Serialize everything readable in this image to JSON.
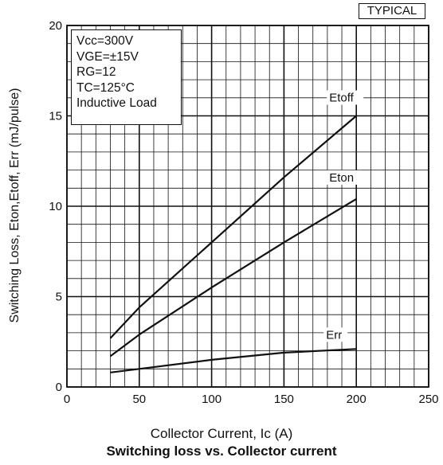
{
  "badge": "TYPICAL",
  "conditions": [
    "Vcc=300V",
    "VGE=±15V",
    "RG=12",
    "TC=125°C",
    "Inductive Load"
  ],
  "caption": "Switching loss vs. Collector current",
  "chart_data": {
    "type": "line",
    "xlabel": "Collector Current, Ic (A)",
    "ylabel": "Switching Loss, Eton,Etoff, Err (mJ/pulse)",
    "xlim": [
      0,
      250
    ],
    "ylim": [
      0,
      20
    ],
    "xticks": [
      0,
      50,
      100,
      150,
      200,
      250
    ],
    "yticks": [
      0,
      5,
      10,
      15,
      20
    ],
    "grid": true,
    "series": [
      {
        "name": "Etoff",
        "x": [
          30,
          50,
          100,
          150,
          200
        ],
        "y": [
          2.7,
          4.4,
          8.0,
          11.6,
          15.0
        ]
      },
      {
        "name": "Eton",
        "x": [
          30,
          50,
          100,
          150,
          200
        ],
        "y": [
          1.7,
          2.9,
          5.5,
          8.0,
          10.4
        ]
      },
      {
        "name": "Err",
        "x": [
          30,
          50,
          100,
          150,
          200
        ],
        "y": [
          0.8,
          1.0,
          1.5,
          1.9,
          2.1
        ]
      }
    ]
  }
}
